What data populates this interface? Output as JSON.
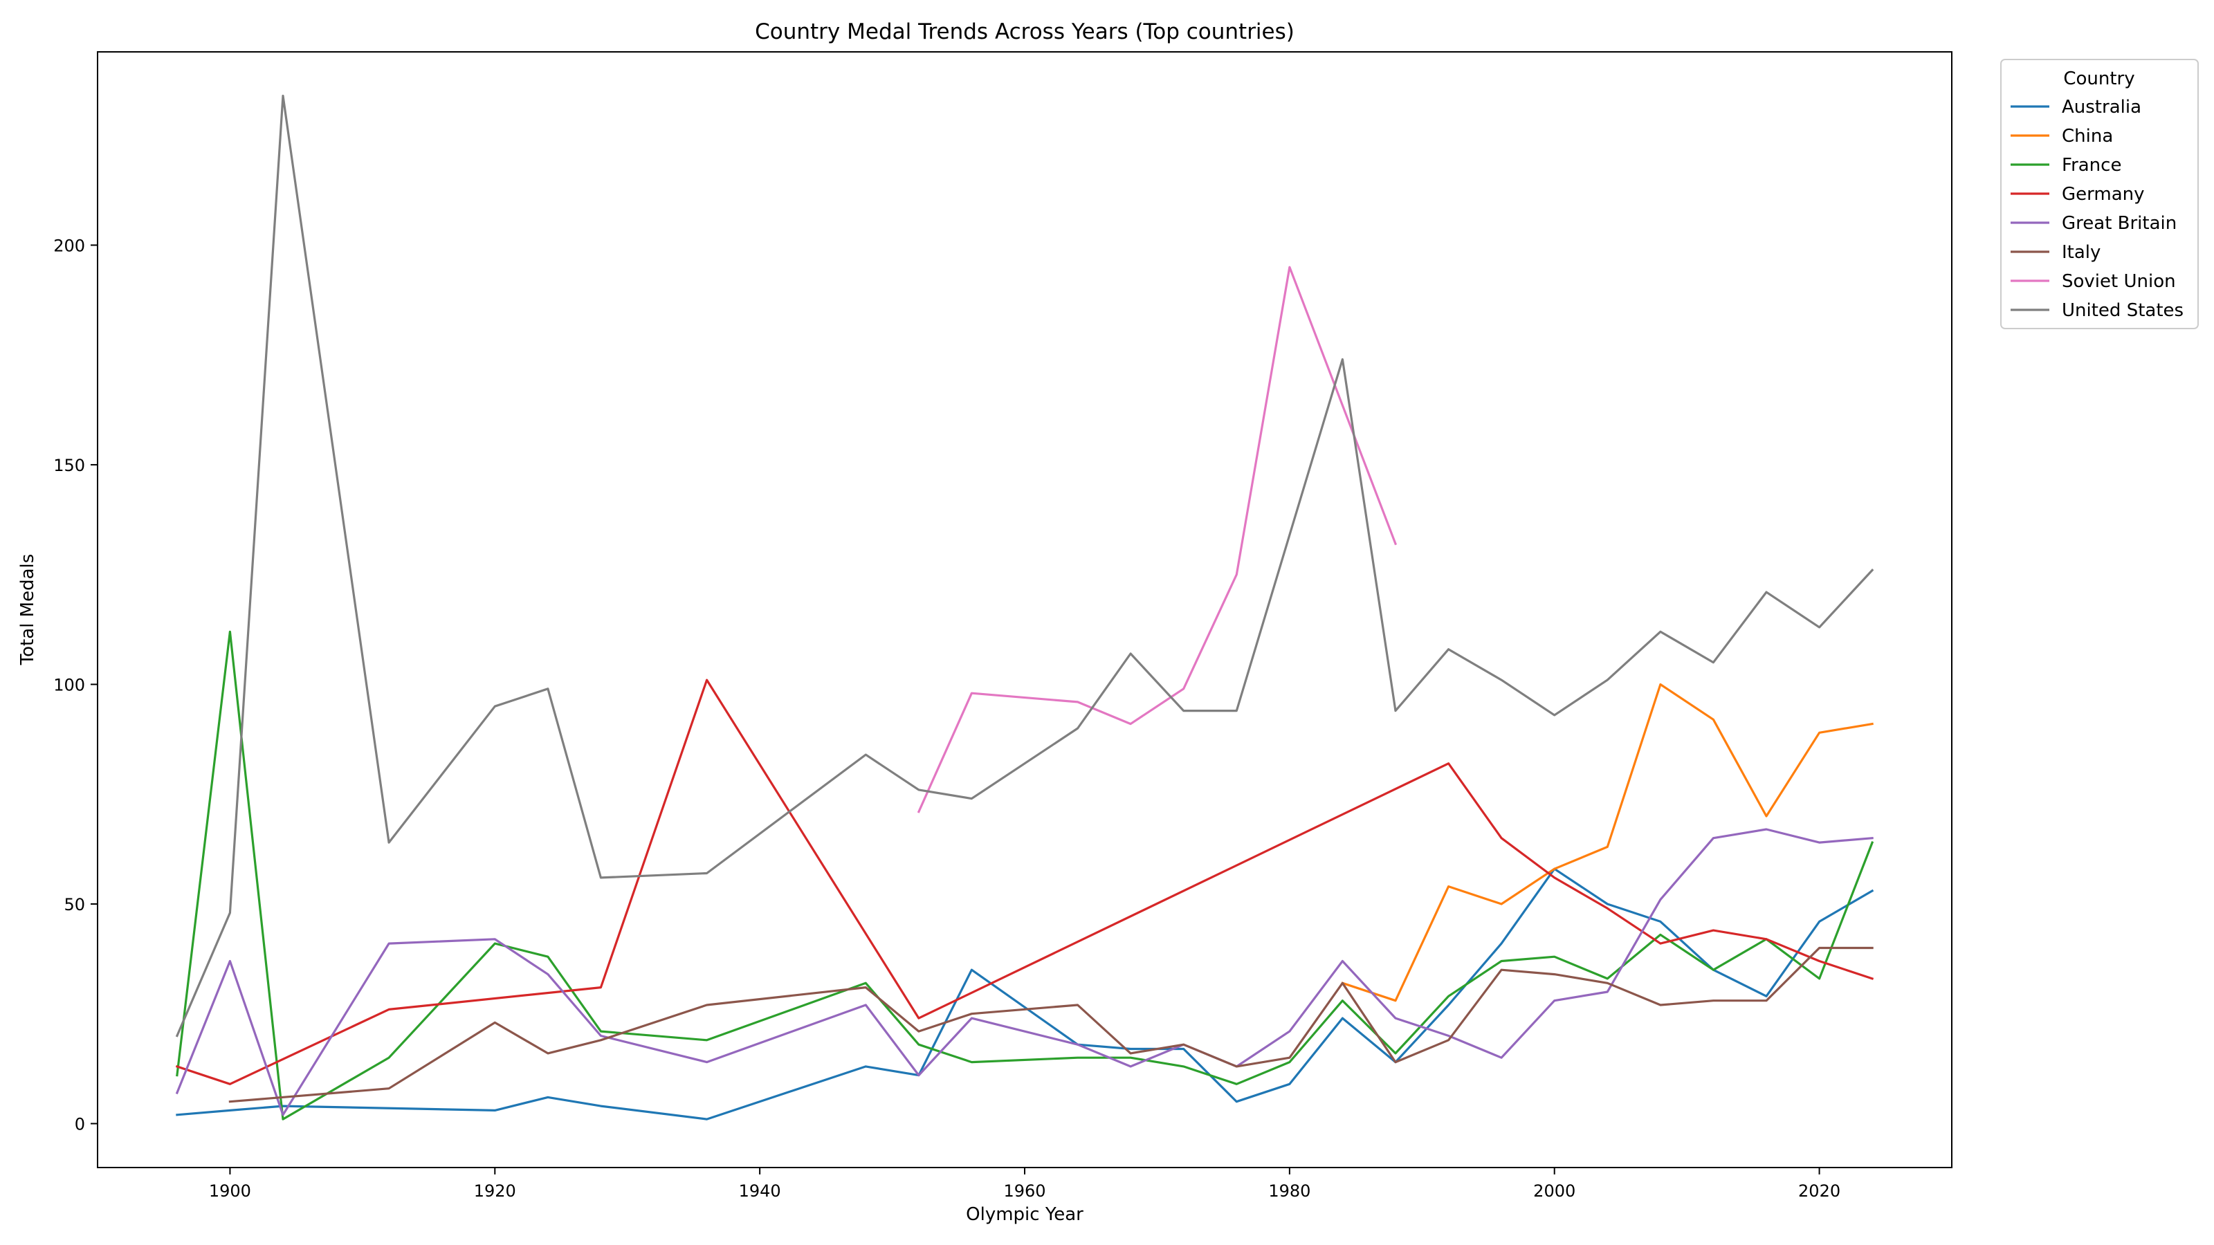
{
  "chart_data": {
    "type": "line",
    "title": "Country Medal Trends Across Years (Top countries)",
    "xlabel": "Olympic Year",
    "ylabel": "Total Medals",
    "xlim": [
      1890,
      2030
    ],
    "ylim": [
      -10,
      244
    ],
    "xticks": [
      1900,
      1920,
      1940,
      1960,
      1980,
      2000,
      2020
    ],
    "yticks": [
      0,
      50,
      100,
      150,
      200
    ],
    "grid": false,
    "legend": {
      "title": "Country",
      "placement": "outside-top-right"
    },
    "series": [
      {
        "name": "Australia",
        "color": "#1f77b4",
        "points": [
          [
            1896,
            2
          ],
          [
            1900,
            3
          ],
          [
            1904,
            4
          ],
          [
            1920,
            3
          ],
          [
            1924,
            6
          ],
          [
            1928,
            4
          ],
          [
            1936,
            1
          ],
          [
            1948,
            13
          ],
          [
            1952,
            11
          ],
          [
            1956,
            35
          ],
          [
            1964,
            18
          ],
          [
            1968,
            17
          ],
          [
            1972,
            17
          ],
          [
            1976,
            5
          ],
          [
            1980,
            9
          ],
          [
            1984,
            24
          ],
          [
            1988,
            14
          ],
          [
            1992,
            27
          ],
          [
            1996,
            41
          ],
          [
            2000,
            58
          ],
          [
            2004,
            50
          ],
          [
            2008,
            46
          ],
          [
            2012,
            35
          ],
          [
            2016,
            29
          ],
          [
            2020,
            46
          ],
          [
            2024,
            53
          ]
        ]
      },
      {
        "name": "China",
        "color": "#ff7f0e",
        "points": [
          [
            1984,
            32
          ],
          [
            1988,
            28
          ],
          [
            1992,
            54
          ],
          [
            1996,
            50
          ],
          [
            2000,
            58
          ],
          [
            2004,
            63
          ],
          [
            2008,
            100
          ],
          [
            2012,
            92
          ],
          [
            2016,
            70
          ],
          [
            2020,
            89
          ],
          [
            2024,
            91
          ]
        ]
      },
      {
        "name": "France",
        "color": "#2ca02c",
        "points": [
          [
            1896,
            11
          ],
          [
            1900,
            112
          ],
          [
            1904,
            1
          ],
          [
            1912,
            15
          ],
          [
            1920,
            41
          ],
          [
            1924,
            38
          ],
          [
            1928,
            21
          ],
          [
            1936,
            19
          ],
          [
            1948,
            32
          ],
          [
            1952,
            18
          ],
          [
            1956,
            14
          ],
          [
            1964,
            15
          ],
          [
            1968,
            15
          ],
          [
            1972,
            13
          ],
          [
            1976,
            9
          ],
          [
            1980,
            14
          ],
          [
            1984,
            28
          ],
          [
            1988,
            16
          ],
          [
            1992,
            29
          ],
          [
            1996,
            37
          ],
          [
            2000,
            38
          ],
          [
            2004,
            33
          ],
          [
            2008,
            43
          ],
          [
            2012,
            35
          ],
          [
            2016,
            42
          ],
          [
            2020,
            33
          ],
          [
            2024,
            64
          ]
        ]
      },
      {
        "name": "Germany",
        "color": "#d62728",
        "points": [
          [
            1896,
            13
          ],
          [
            1900,
            9
          ],
          [
            1912,
            26
          ],
          [
            1928,
            31
          ],
          [
            1936,
            101
          ],
          [
            1952,
            24
          ],
          [
            1992,
            82
          ],
          [
            1996,
            65
          ],
          [
            2000,
            56
          ],
          [
            2004,
            49
          ],
          [
            2008,
            41
          ],
          [
            2012,
            44
          ],
          [
            2016,
            42
          ],
          [
            2020,
            37
          ],
          [
            2024,
            33
          ]
        ]
      },
      {
        "name": "Great Britain",
        "color": "#9467bd",
        "points": [
          [
            1896,
            7
          ],
          [
            1900,
            37
          ],
          [
            1904,
            2
          ],
          [
            1912,
            41
          ],
          [
            1920,
            42
          ],
          [
            1924,
            34
          ],
          [
            1928,
            20
          ],
          [
            1936,
            14
          ],
          [
            1948,
            27
          ],
          [
            1952,
            11
          ],
          [
            1956,
            24
          ],
          [
            1964,
            18
          ],
          [
            1968,
            13
          ],
          [
            1972,
            18
          ],
          [
            1976,
            13
          ],
          [
            1980,
            21
          ],
          [
            1984,
            37
          ],
          [
            1988,
            24
          ],
          [
            1992,
            20
          ],
          [
            1996,
            15
          ],
          [
            2000,
            28
          ],
          [
            2004,
            30
          ],
          [
            2008,
            51
          ],
          [
            2012,
            65
          ],
          [
            2016,
            67
          ],
          [
            2020,
            64
          ],
          [
            2024,
            65
          ]
        ]
      },
      {
        "name": "Italy",
        "color": "#8c564b",
        "points": [
          [
            1900,
            5
          ],
          [
            1912,
            8
          ],
          [
            1920,
            23
          ],
          [
            1924,
            16
          ],
          [
            1928,
            19
          ],
          [
            1936,
            27
          ],
          [
            1948,
            31
          ],
          [
            1952,
            21
          ],
          [
            1956,
            25
          ],
          [
            1964,
            27
          ],
          [
            1968,
            16
          ],
          [
            1972,
            18
          ],
          [
            1976,
            13
          ],
          [
            1980,
            15
          ],
          [
            1984,
            32
          ],
          [
            1988,
            14
          ],
          [
            1992,
            19
          ],
          [
            1996,
            35
          ],
          [
            2000,
            34
          ],
          [
            2004,
            32
          ],
          [
            2008,
            27
          ],
          [
            2012,
            28
          ],
          [
            2016,
            28
          ],
          [
            2020,
            40
          ],
          [
            2024,
            40
          ]
        ]
      },
      {
        "name": "Soviet Union",
        "color": "#e377c2",
        "points": [
          [
            1952,
            71
          ],
          [
            1956,
            98
          ],
          [
            1964,
            96
          ],
          [
            1968,
            91
          ],
          [
            1972,
            99
          ],
          [
            1976,
            125
          ],
          [
            1980,
            195
          ],
          [
            1988,
            132
          ]
        ]
      },
      {
        "name": "United States",
        "color": "#7f7f7f",
        "points": [
          [
            1896,
            20
          ],
          [
            1900,
            48
          ],
          [
            1904,
            234
          ],
          [
            1912,
            64
          ],
          [
            1920,
            95
          ],
          [
            1924,
            99
          ],
          [
            1928,
            56
          ],
          [
            1936,
            57
          ],
          [
            1948,
            84
          ],
          [
            1952,
            76
          ],
          [
            1956,
            74
          ],
          [
            1964,
            90
          ],
          [
            1968,
            107
          ],
          [
            1972,
            94
          ],
          [
            1976,
            94
          ],
          [
            1984,
            174
          ],
          [
            1988,
            94
          ],
          [
            1992,
            108
          ],
          [
            1996,
            101
          ],
          [
            2000,
            93
          ],
          [
            2004,
            101
          ],
          [
            2008,
            112
          ],
          [
            2012,
            105
          ],
          [
            2016,
            121
          ],
          [
            2020,
            113
          ],
          [
            2024,
            126
          ]
        ]
      }
    ]
  }
}
